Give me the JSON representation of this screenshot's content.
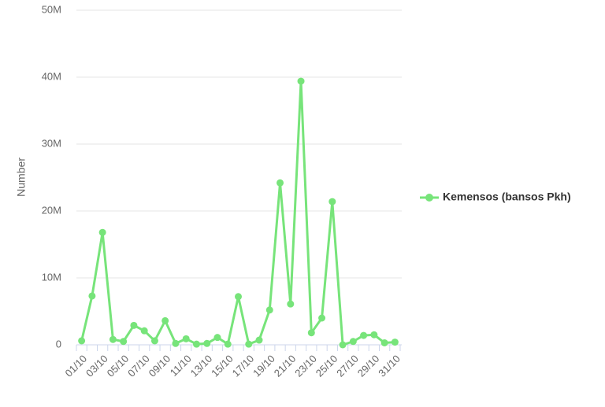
{
  "chart_data": {
    "type": "line",
    "y_label": "Number",
    "categories": [
      "01/10",
      null,
      "03/10",
      null,
      "05/10",
      null,
      "07/10",
      null,
      "09/10",
      null,
      "11/10",
      null,
      "13/10",
      null,
      "15/10",
      null,
      "17/10",
      null,
      "19/10",
      null,
      "21/10",
      null,
      "23/10",
      null,
      "25/10",
      null,
      "27/10",
      null,
      "29/10",
      null,
      "31/10"
    ],
    "series": [
      {
        "name": "Kemensos (bansos Pkh)",
        "color": "#77e47a",
        "values": [
          600000,
          7300000,
          16800000,
          800000,
          500000,
          2900000,
          2100000,
          600000,
          3600000,
          200000,
          900000,
          100000,
          200000,
          1100000,
          100000,
          7200000,
          100000,
          700000,
          5200000,
          24200000,
          6100000,
          39400000,
          1800000,
          4000000,
          21400000,
          0,
          500000,
          1400000,
          1500000,
          300000,
          400000
        ]
      }
    ],
    "ylim": [
      0,
      50000000
    ],
    "yticks": [
      0,
      {
        "value": 10000000,
        "label": "10M"
      },
      {
        "value": 20000000,
        "label": "20M"
      },
      {
        "value": 30000000,
        "label": "30M"
      },
      {
        "value": 40000000,
        "label": "40M"
      },
      {
        "value": 50000000,
        "label": "50M"
      }
    ],
    "grid": true,
    "legend": "right"
  }
}
